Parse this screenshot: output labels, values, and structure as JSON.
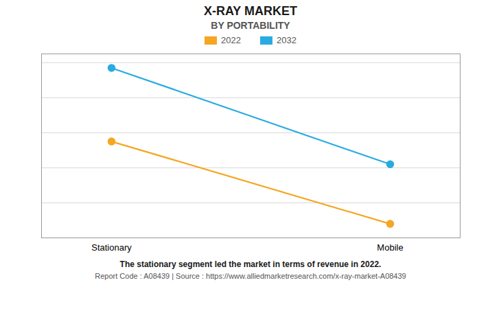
{
  "chart_data": {
    "type": "line",
    "title": "X-RAY MARKET",
    "subtitle": "BY PORTABILITY",
    "categories": [
      "Stationary",
      "Mobile"
    ],
    "series": [
      {
        "name": "2022",
        "color": "#F5A623",
        "marker": "circle",
        "values": [
          0.55,
          0.08
        ]
      },
      {
        "name": "2032",
        "color": "#29ABE2",
        "marker": "circle",
        "values": [
          0.97,
          0.42
        ]
      }
    ],
    "ylim": [
      0.0,
      1.05
    ],
    "yticks": [
      0.0,
      0.2,
      0.4,
      0.6,
      0.8,
      1.0
    ],
    "grid": true,
    "legend": "top",
    "tick_labels": "x",
    "annotations": [
      "The stationary segment led the market in terms of revenue in 2022.",
      "Report Code : A08439  |  Source : https://www.alliedmarketresearch.com/x-ray-market-A08439"
    ]
  }
}
